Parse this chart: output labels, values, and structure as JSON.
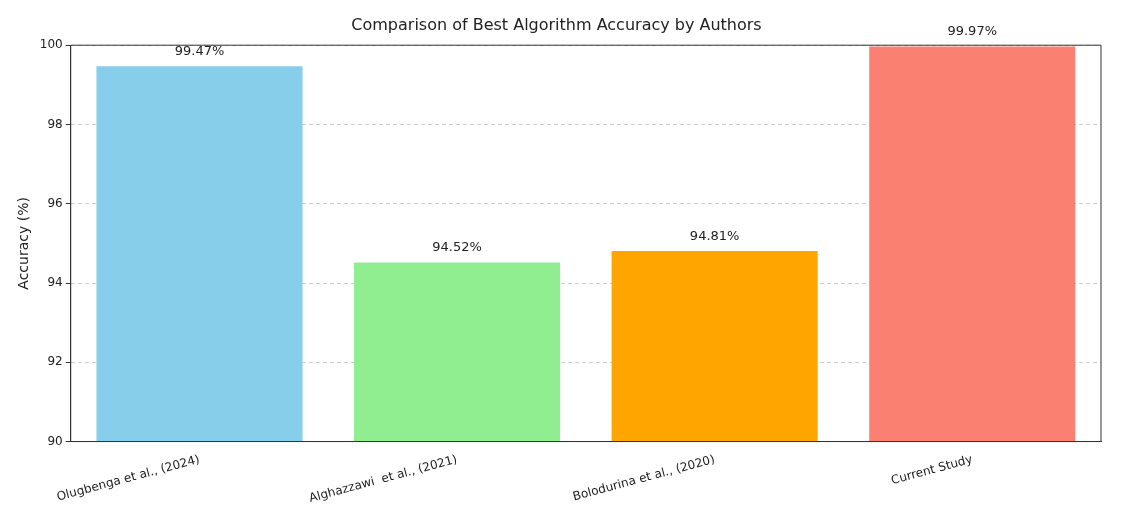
{
  "chart_data": {
    "type": "bar",
    "title": "Comparison of Best Algorithm Accuracy by Authors",
    "ylabel": "Accuracy (%)",
    "categories": [
      "Olugbenga et al., (2024)",
      "Alghazzawi  et al., (2021)",
      "Bolodurina et al., (2020)",
      "Current Study"
    ],
    "values": [
      99.47,
      94.52,
      94.81,
      99.97
    ],
    "colors": [
      "#87ceeb",
      "#90ee90",
      "#ffa500",
      "#fa8072"
    ],
    "value_labels": [
      "99.47%",
      "94.52%",
      "94.81%",
      "99.97%"
    ],
    "ylim": [
      90,
      100
    ],
    "yticks": [
      90,
      92,
      94,
      96,
      98,
      100
    ],
    "grid": "y",
    "legend": false
  }
}
